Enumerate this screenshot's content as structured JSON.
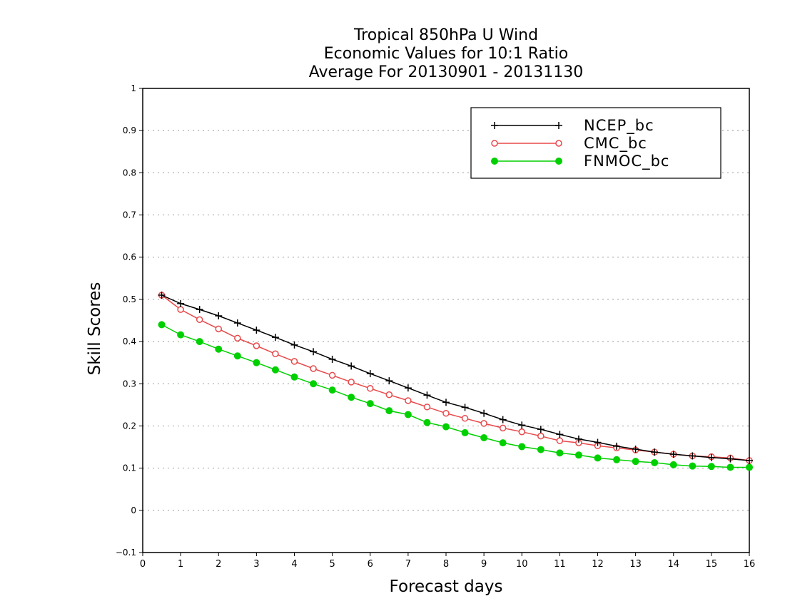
{
  "chart_data": {
    "type": "line",
    "title_lines": [
      "Tropical 850hPa U Wind",
      "Economic Values for 10:1 Ratio",
      "Average For 20130901 - 20131130"
    ],
    "xlabel": "Forecast days",
    "ylabel": "Skill Scores",
    "xlim": [
      0,
      16
    ],
    "ylim": [
      -0.1,
      1
    ],
    "xticks": [
      "0",
      "1",
      "2",
      "3",
      "4",
      "5",
      "6",
      "7",
      "8",
      "9",
      "10",
      "11",
      "12",
      "13",
      "14",
      "15",
      "16"
    ],
    "yticks": [
      "−0.1",
      "0",
      "0.1",
      "0.2",
      "0.3",
      "0.4",
      "0.5",
      "0.6",
      "0.7",
      "0.8",
      "0.9",
      "1"
    ],
    "grid": true,
    "legend_position": "top-right",
    "x": [
      0.5,
      1,
      1.5,
      2,
      2.5,
      3,
      3.5,
      4,
      4.5,
      5,
      5.5,
      6,
      6.5,
      7,
      7.5,
      8,
      8.5,
      9,
      9.5,
      10,
      10.5,
      11,
      11.5,
      12,
      12.5,
      13,
      13.5,
      14,
      14.5,
      15,
      15.5,
      16
    ],
    "series": [
      {
        "name": "NCEP_bc",
        "color": "#000000",
        "marker": "plus",
        "values": [
          0.51,
          0.49,
          0.476,
          0.461,
          0.444,
          0.427,
          0.41,
          0.392,
          0.376,
          0.358,
          0.342,
          0.324,
          0.307,
          0.29,
          0.273,
          0.256,
          0.244,
          0.23,
          0.215,
          0.202,
          0.192,
          0.18,
          0.169,
          0.161,
          0.152,
          0.145,
          0.138,
          0.133,
          0.129,
          0.125,
          0.122,
          0.118
        ]
      },
      {
        "name": "CMC_bc",
        "color": "#e8484a",
        "marker": "open-circle",
        "values": [
          0.51,
          0.476,
          0.452,
          0.43,
          0.408,
          0.39,
          0.371,
          0.353,
          0.336,
          0.32,
          0.304,
          0.289,
          0.274,
          0.26,
          0.245,
          0.23,
          0.218,
          0.206,
          0.195,
          0.186,
          0.176,
          0.165,
          0.16,
          0.153,
          0.148,
          0.143,
          0.138,
          0.133,
          0.129,
          0.127,
          0.124,
          0.118
        ]
      },
      {
        "name": "FNMOC_bc",
        "color": "#00d000",
        "marker": "filled-circle",
        "values": [
          0.44,
          0.416,
          0.4,
          0.382,
          0.366,
          0.35,
          0.333,
          0.316,
          0.3,
          0.285,
          0.268,
          0.253,
          0.236,
          0.227,
          0.208,
          0.198,
          0.184,
          0.172,
          0.16,
          0.151,
          0.144,
          0.136,
          0.131,
          0.124,
          0.12,
          0.116,
          0.113,
          0.108,
          0.105,
          0.104,
          0.102,
          0.102
        ]
      }
    ]
  }
}
